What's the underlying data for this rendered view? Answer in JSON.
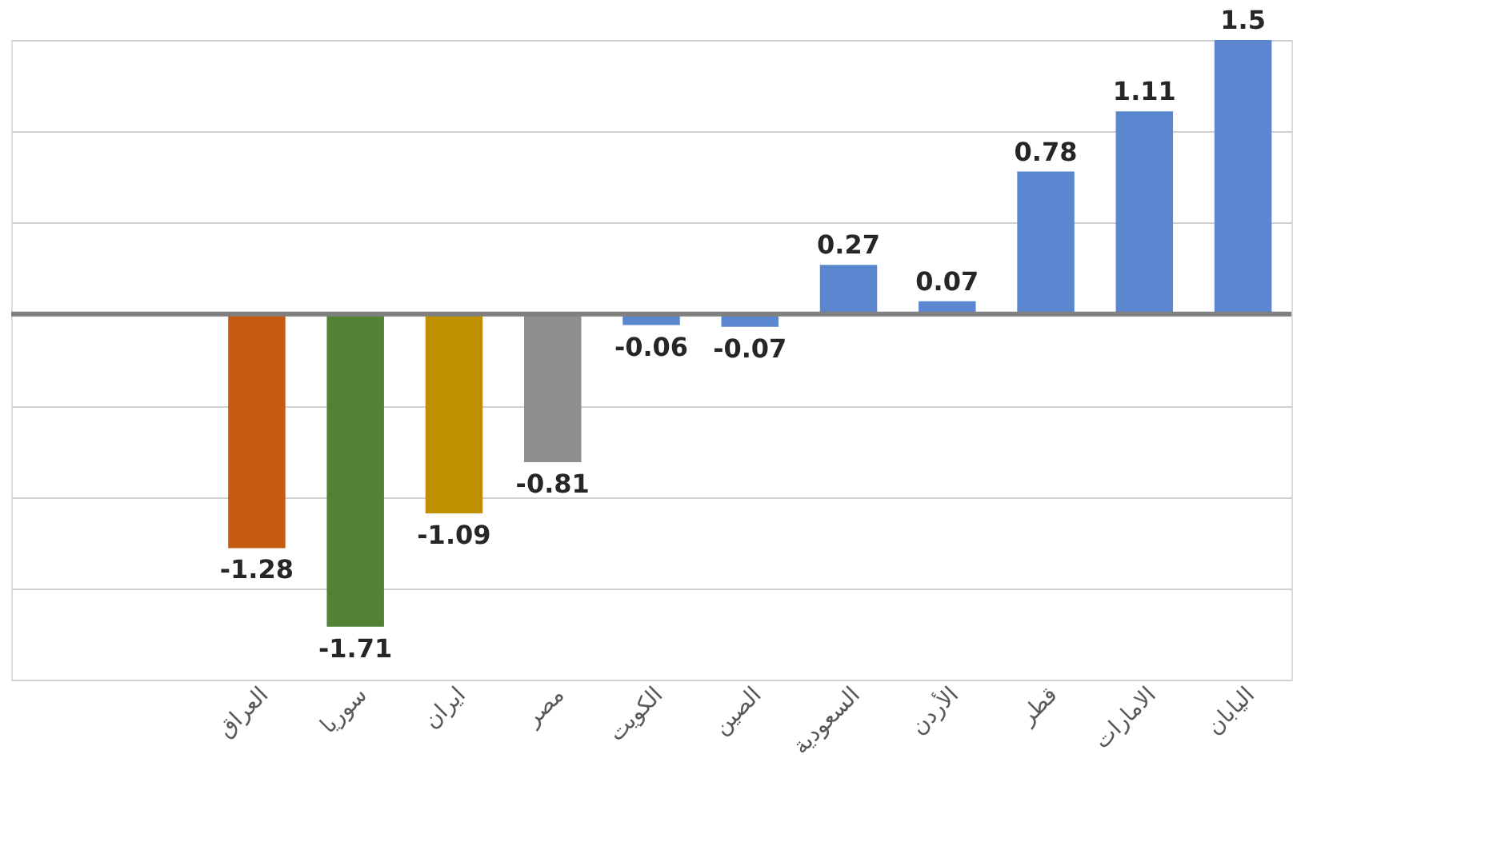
{
  "chart_data": {
    "type": "bar",
    "categories": [
      null,
      null,
      "العراق",
      "سوريا",
      "ايران",
      "مصر",
      "الكويت",
      "الصين",
      "السعودية",
      "الأردن",
      "قطر",
      "الامارات",
      "اليابان"
    ],
    "values": [
      null,
      null,
      -1.28,
      -1.71,
      -1.09,
      -0.81,
      -0.06,
      -0.07,
      0.27,
      0.07,
      0.78,
      1.11,
      1.5
    ],
    "colors": [
      "#5b87d0",
      "#5b87d0",
      "#c55a11",
      "#548235",
      "#bf9000",
      "#8f8f92",
      "#5b87d0",
      "#5b87d0",
      "#5b87d0",
      "#5b87d0",
      "#5b87d0",
      "#5b87d0",
      "#5b87d0"
    ],
    "data_labels": true,
    "ylim": [
      -2,
      1.5
    ],
    "yticks": [
      {
        "value": -2,
        "label": null
      },
      {
        "value": -1.5,
        "label": null
      },
      {
        "value": -1,
        "label": null
      },
      {
        "value": -0.5,
        "label": null
      },
      {
        "value": 0,
        "label": null
      },
      {
        "value": 0.5,
        "label": null
      },
      {
        "value": 1,
        "label": null
      },
      {
        "value": 1.5,
        "label": null
      }
    ],
    "grid": "y",
    "tick_labels": "x"
  }
}
